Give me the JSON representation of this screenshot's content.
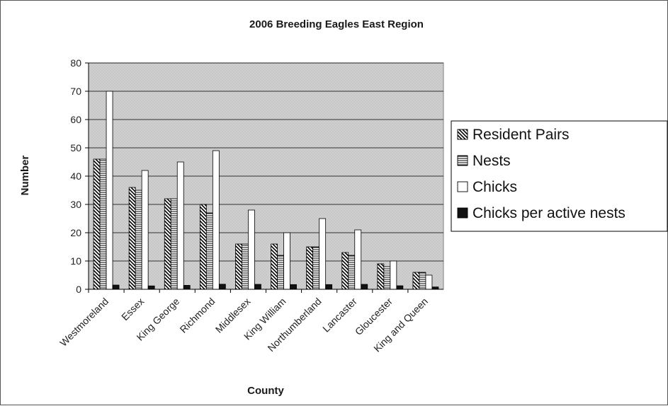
{
  "chart_data": {
    "type": "bar",
    "title": "2006 Breeding Eagles East Region",
    "xlabel": "County",
    "ylabel": "Number",
    "ylim": [
      0,
      80
    ],
    "yticks": [
      0,
      10,
      20,
      30,
      40,
      50,
      60,
      70,
      80
    ],
    "grid": true,
    "legend_position": "right",
    "categories": [
      "Westmoreland",
      "Essex",
      "King George",
      "Richmond",
      "Middlesex",
      "King William",
      "Northumberland",
      "Lancaster",
      "Gloucester",
      "King and Queen"
    ],
    "series": [
      {
        "name": "Resident Pairs",
        "pattern": "diagonal",
        "color": "#000000",
        "values": [
          46,
          36,
          32,
          30,
          16,
          16,
          15,
          13,
          9,
          6
        ]
      },
      {
        "name": "Nests",
        "pattern": "horizontal",
        "color": "#000000",
        "values": [
          46,
          35,
          32,
          27,
          16,
          12,
          15,
          12,
          8,
          6
        ]
      },
      {
        "name": "Chicks",
        "pattern": "none",
        "color": "#ffffff",
        "values": [
          70,
          42,
          45,
          49,
          28,
          20,
          25,
          21,
          10,
          5
        ]
      },
      {
        "name": "Chicks per active nests",
        "pattern": "solid",
        "color": "#111111",
        "values": [
          1.5,
          1.2,
          1.4,
          1.8,
          1.75,
          1.67,
          1.67,
          1.75,
          1.25,
          0.83
        ]
      }
    ],
    "plot_background": "#c9c9c9"
  }
}
